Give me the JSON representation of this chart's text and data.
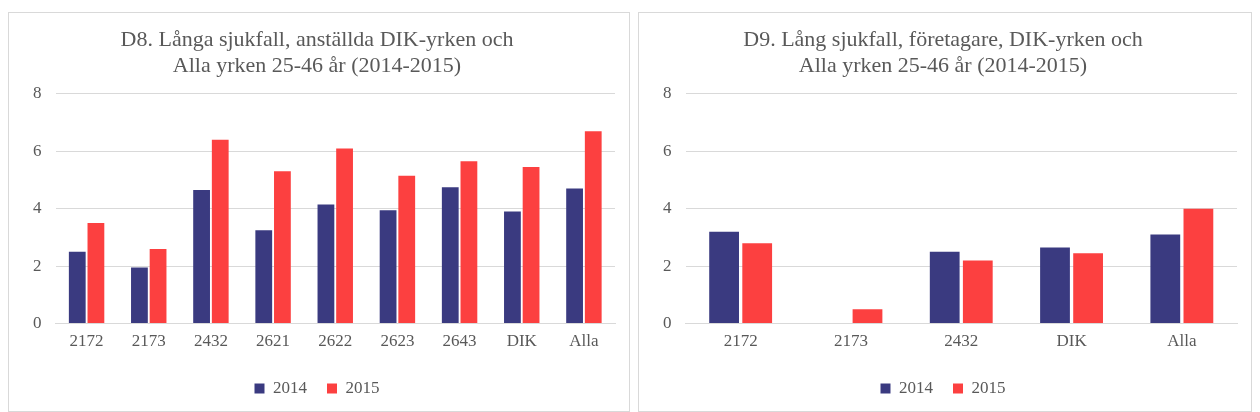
{
  "chart_data": [
    {
      "type": "bar",
      "title": "D8. Långa sjukfall, anställda DIK-yrken och\nAlla yrken 25-46 år (2014-2015)",
      "categories": [
        "2172",
        "2173",
        "2432",
        "2621",
        "2622",
        "2623",
        "2643",
        "DIK",
        "Alla"
      ],
      "series": [
        {
          "name": "2014",
          "color": "#3a3a80",
          "values": [
            2.5,
            1.95,
            4.65,
            3.25,
            4.15,
            3.95,
            4.75,
            3.9,
            4.7
          ]
        },
        {
          "name": "2015",
          "color": "#fc4040",
          "values": [
            3.5,
            2.6,
            6.4,
            5.3,
            6.1,
            5.15,
            5.65,
            5.45,
            6.7
          ]
        }
      ],
      "ylim": [
        0,
        8
      ],
      "yticks": [
        0,
        2,
        4,
        6,
        8
      ],
      "grid": "y",
      "legend": "bottom"
    },
    {
      "type": "bar",
      "title": "D9. Lång sjukfall, företagare, DIK-yrken och\nAlla yrken 25-46 år (2014-2015)",
      "categories": [
        "2172",
        "2173",
        "2432",
        "DIK",
        "Alla"
      ],
      "series": [
        {
          "name": "2014",
          "color": "#3a3a80",
          "values": [
            3.2,
            null,
            2.5,
            2.65,
            3.1
          ]
        },
        {
          "name": "2015",
          "color": "#fc4040",
          "values": [
            2.8,
            0.5,
            2.2,
            2.45,
            4.0
          ]
        }
      ],
      "ylim": [
        0,
        8
      ],
      "yticks": [
        0,
        2,
        4,
        6,
        8
      ],
      "grid": "y",
      "legend": "bottom"
    }
  ]
}
